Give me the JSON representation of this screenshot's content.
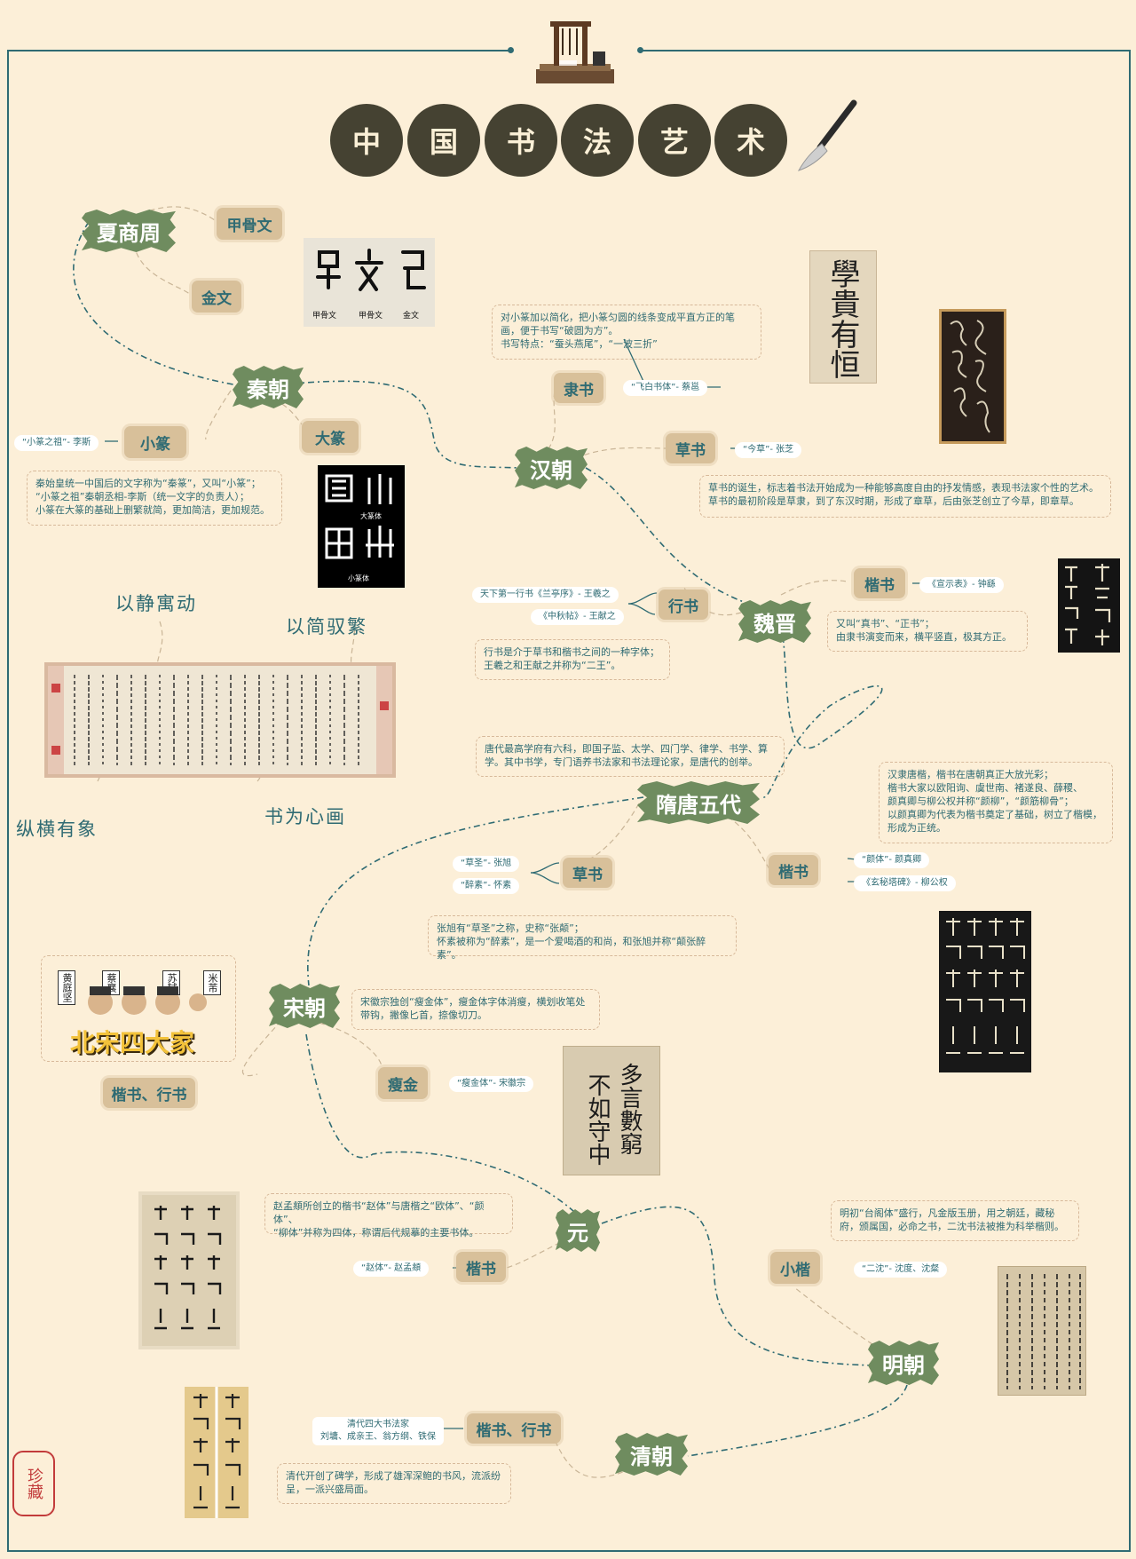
{
  "title_chars": [
    "中",
    "国",
    "书",
    "法",
    "艺",
    "术"
  ],
  "dynasties": {
    "xia": "夏商周",
    "qin": "秦朝",
    "han": "汉朝",
    "weijin": "魏晋",
    "suitang": "隋唐五代",
    "song": "宋朝",
    "yuan": "元",
    "ming": "明朝",
    "qing": "清朝"
  },
  "tags": {
    "jiaguwen": "甲骨文",
    "jinwen": "金文",
    "xiaozhuan": "小篆",
    "dazhuan": "大篆",
    "lishu": "隶书",
    "caoshu_han": "草书",
    "kaishu_wei": "楷书",
    "xingshu": "行书",
    "caoshu_tang": "草书",
    "kaishu_tang": "楷书",
    "kai_xing_song": "楷书、行书",
    "shoujin": "瘦金",
    "kaishu_yuan": "楷书",
    "xiaokai": "小楷",
    "kai_xing_qing": "楷书、行书"
  },
  "pills": {
    "xiaozhuan_ancestor": "“小篆之祖”- 李斯",
    "feibai": "“飞白书体”- 蔡邕",
    "jincao": "“今草”- 张芝",
    "xuanshibiao": "《宣示表》- 钟繇",
    "lanting": "天下第一行书《兰亭序》- 王羲之",
    "zhongqiu": "《中秋帖》- 王献之",
    "caosheng": "“草圣”- 张旭",
    "zuisu": "“醉素”- 怀素",
    "yanti": "“颜体”- 颜真卿",
    "xuanmi": "《玄秘塔碑》- 柳公权",
    "shoujinti": "“瘦金体”- 宋徽宗",
    "zhaoti": "“赵体”- 赵孟頫",
    "ershen": "“二沈”- 沈度、沈粲",
    "qing_masters_title": "清代四大书法家",
    "qing_masters_names": "刘墉、成亲王、翁方纲、铁保"
  },
  "notes": {
    "qin": [
      "秦始皇统一中国后的文字称为“秦篆”，又叫“小篆”；",
      "“小篆之祖”秦朝丞相-李斯（统一文字的负责人）；",
      "小篆在大篆的基础上删繁就简，更加简洁，更加规范。"
    ],
    "lishu": [
      "对小篆加以简化，把小篆匀圆的线条变成平直方正的笔",
      "画，便于书写“破圆为方”。",
      "书写特点：“蚕头燕尾”，“一波三折”"
    ],
    "caoshu_han": [
      "草书的诞生，标志着书法开始成为一种能够高度自由的抒发情感，表现书法家个性的艺术。",
      "草书的最初阶段是草隶，到了东汉时期，形成了章草，后由张芝创立了今草，即章草。"
    ],
    "kaishu_wei": [
      "又叫“真书”、“正书”；",
      "由隶书演变而来，横平竖直，极其方正。"
    ],
    "xingshu": [
      "行书是介于草书和楷书之间的一种字体；",
      "王羲之和王献之并称为“二王”。"
    ],
    "tang_school": [
      "唐代最高学府有六科，即国子监、太学、四门学、律学、书学、算",
      "学。其中书学，专门语养书法家和书法理论家，是唐代的创举。"
    ],
    "kaishu_tang": [
      "汉隶唐楷，楷书在唐朝真正大放光彩；",
      "楷书大家以欧阳询、虞世南、褚遂良、薛稷、",
      "颜真卿与柳公权并称“颜柳”，“颜筋柳骨”；",
      "以颜真卿为代表为楷书奠定了基础，树立了楷模，",
      "形成为正统。"
    ],
    "caoshu_tang": [
      "张旭有“草圣”之称，史称“张颠”；",
      "怀素被称为“醉素”，是一个爱喝酒的和尚，和张旭并称“颠张醉素”。"
    ],
    "shoujin": [
      "宋徽宗独创“瘦金体”，瘦金体字体消瘦，横划收笔处",
      "带钩，撇像匕首，捺像切刀。"
    ],
    "yuan": [
      "赵孟頫所创立的楷书“赵体”与唐楷之“欧体”、“颜体”、",
      "“柳体”并称为四体，称谓后代规摹的主要书体。"
    ],
    "ming": [
      "明初“台阁体”盛行，凡金版玉册，用之朝廷，藏秘",
      "府，颁属国，必命之书，二沈书法被推为科举楷则。"
    ],
    "qing": [
      "清代开创了碑学，形成了雄浑深鲍的书风，流派纷",
      "呈，一派兴盛局面。"
    ]
  },
  "mottos": {
    "m1": "以静寓动",
    "m2": "以简驭繁",
    "m3": "纵横有象",
    "m4": "书为心画"
  },
  "images": {
    "oracle_labels": [
      "甲骨文",
      "甲骨文",
      "金文"
    ],
    "zhuan_labels": [
      "大篆体",
      "小篆体"
    ],
    "xue_gui": "學貴有恒",
    "song_masters": {
      "title": "北宋四大家",
      "names": [
        "黄庭坚",
        "蔡襄",
        "苏轼",
        "米芾"
      ]
    },
    "shoujin_scroll": [
      "多言數窮",
      "不如守中"
    ],
    "seal": "珍藏"
  },
  "colors": {
    "background": "#fcefd8",
    "accent": "#2f6b73",
    "dynasty_green": "#6f8c5f",
    "tag_tan": "#d8c09a",
    "title_circle": "#454232"
  }
}
